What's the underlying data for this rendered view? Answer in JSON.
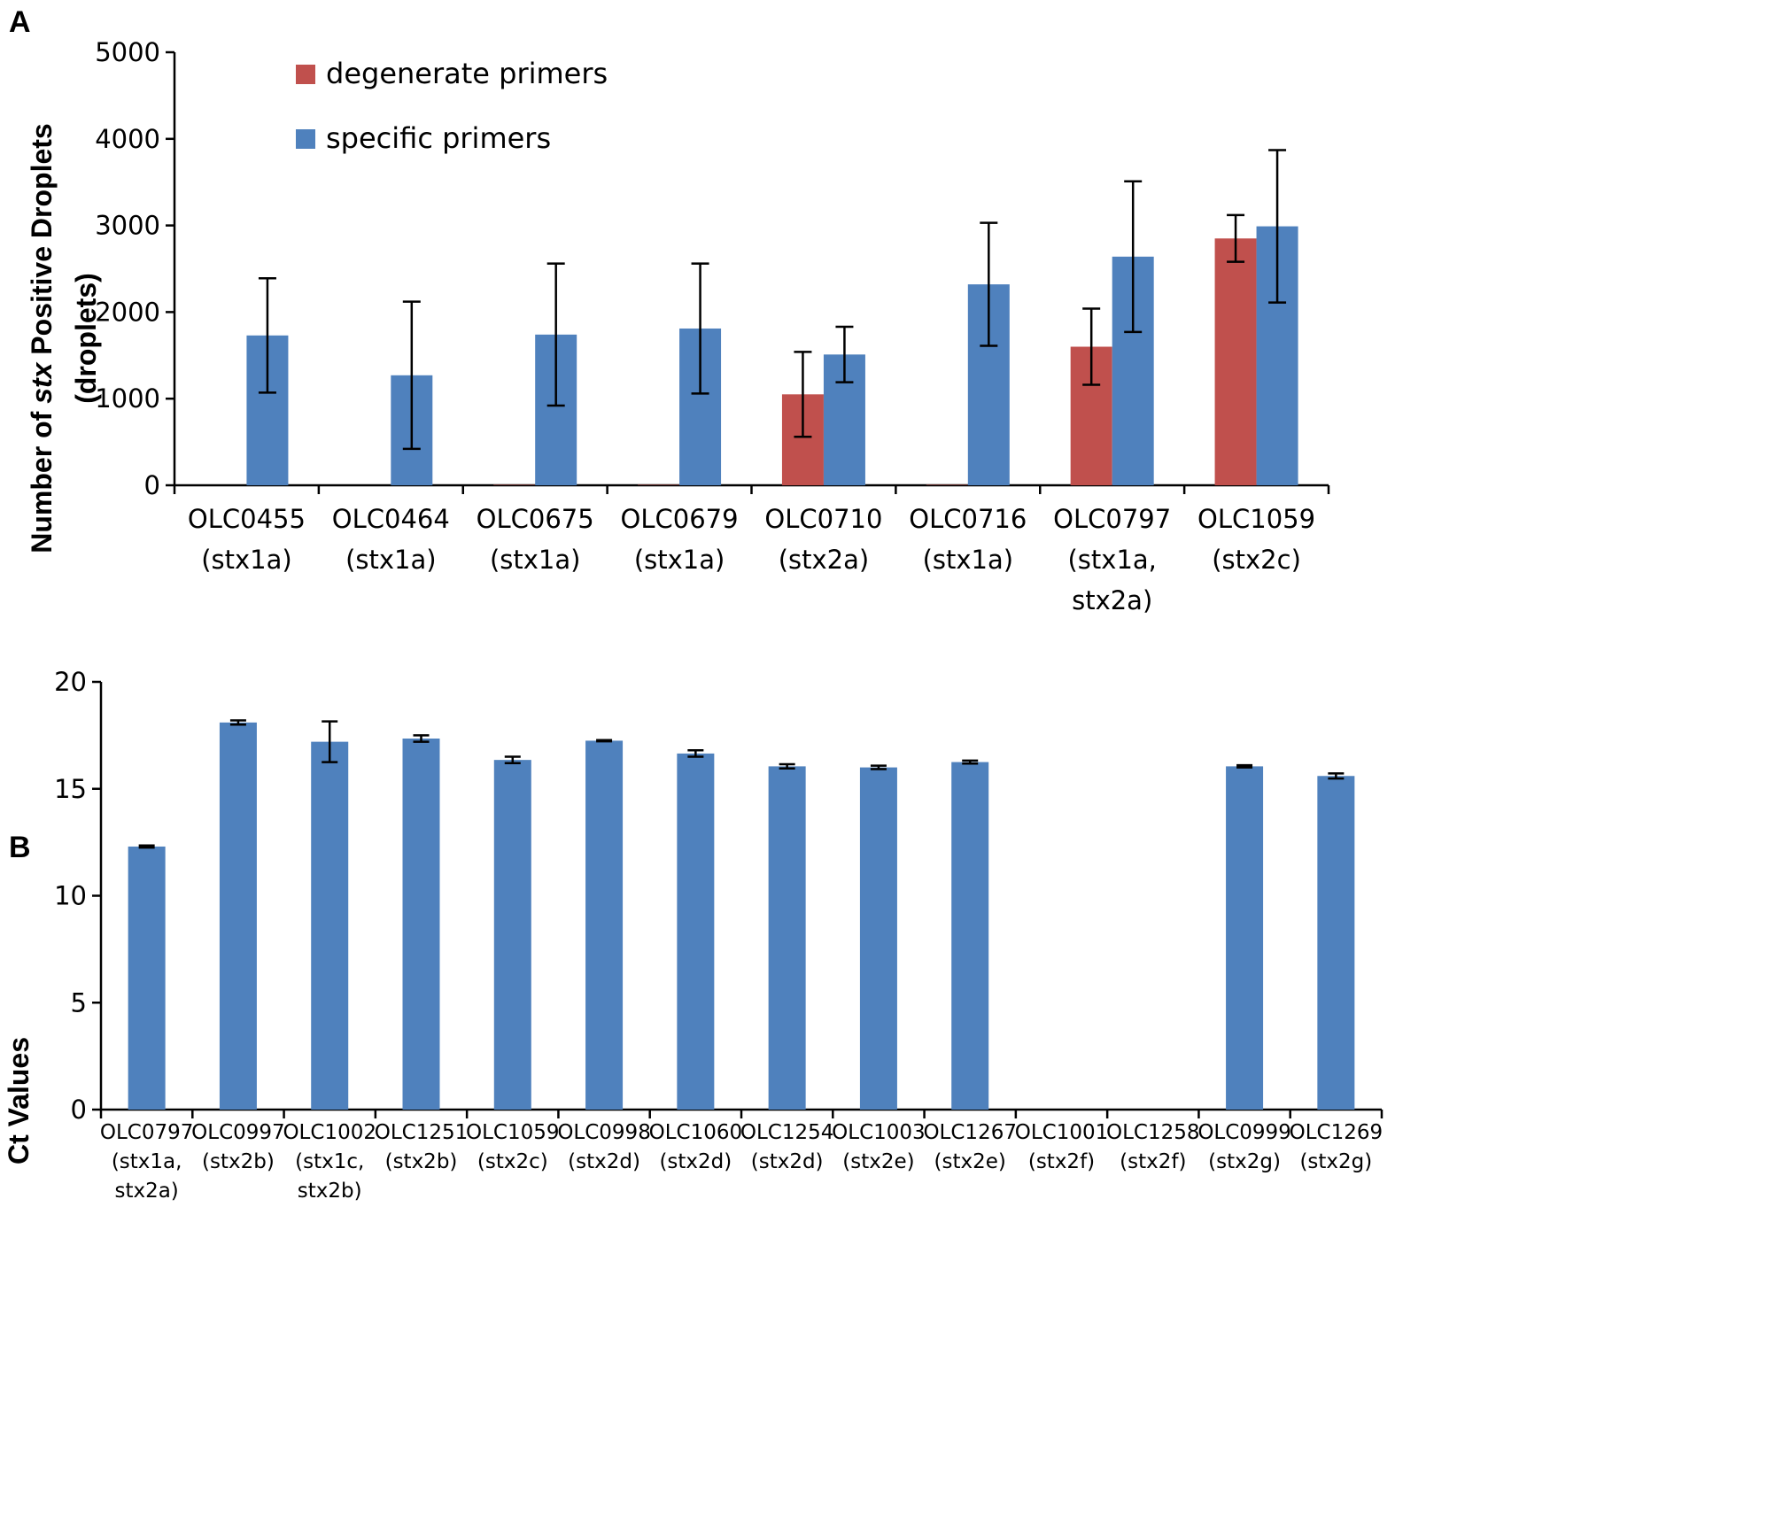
{
  "chart_data": [
    {
      "panel": "A",
      "type": "bar",
      "ylabel_prefix": "Number of ",
      "ylabel_italic": "stx",
      "ylabel_suffix": " Positive Droplets",
      "ylabel_line2": "(droplets)",
      "ylim": [
        0,
        5000
      ],
      "yticks": [
        0,
        1000,
        2000,
        3000,
        4000,
        5000
      ],
      "categories": [
        [
          "OLC0455",
          "(stx1a)"
        ],
        [
          "OLC0464",
          "(stx1a)"
        ],
        [
          "OLC0675",
          "(stx1a)"
        ],
        [
          "OLC0679",
          "(stx1a)"
        ],
        [
          "OLC0710",
          "(stx2a)"
        ],
        [
          "OLC0716",
          "(stx1a)"
        ],
        [
          "OLC0797",
          "(stx1a,",
          "stx2a)"
        ],
        [
          "OLC1059",
          "(stx2c)"
        ]
      ],
      "legend": [
        "degenerate primers",
        "specific primers"
      ],
      "series": [
        {
          "name": "degenerate primers",
          "color": "#c0504d",
          "values": [
            0,
            0,
            5,
            5,
            1050,
            5,
            1600,
            2850
          ],
          "errors": [
            0,
            0,
            0,
            0,
            490,
            0,
            440,
            270
          ]
        },
        {
          "name": "specific primers",
          "color": "#4f81bd",
          "values": [
            1730,
            1270,
            1740,
            1810,
            1510,
            2320,
            2640,
            2990
          ],
          "errors": [
            660,
            850,
            820,
            750,
            320,
            710,
            870,
            880
          ]
        }
      ]
    },
    {
      "panel": "B",
      "type": "bar",
      "ylabel": "Ct Values",
      "ylim": [
        0,
        20
      ],
      "yticks": [
        0,
        5,
        10,
        15,
        20
      ],
      "categories": [
        [
          "OLC0797",
          "(stx1a,",
          "stx2a)"
        ],
        [
          "OLC0997",
          "(stx2b)"
        ],
        [
          "OLC1002",
          "(stx1c,",
          "stx2b)"
        ],
        [
          "OLC1251",
          "(stx2b)"
        ],
        [
          "OLC1059",
          "(stx2c)"
        ],
        [
          "OLC0998",
          "(stx2d)"
        ],
        [
          "OLC1060",
          "(stx2d)"
        ],
        [
          "OLC1254",
          "(stx2d)"
        ],
        [
          "OLC1003",
          "(stx2e)"
        ],
        [
          "OLC1267",
          "(stx2e)"
        ],
        [
          "OLC1001",
          "(stx2f)"
        ],
        [
          "OLC1258",
          "(stx2f)"
        ],
        [
          "OLC0999",
          "(stx2g)"
        ],
        [
          "OLC1269",
          "(stx2g)"
        ]
      ],
      "series": [
        {
          "name": "Ct",
          "color": "#4f81bd",
          "values": [
            12.3,
            18.1,
            17.2,
            17.35,
            16.35,
            17.25,
            16.65,
            16.05,
            16.0,
            16.25,
            0,
            0,
            16.05,
            15.6
          ],
          "errors": [
            0.05,
            0.1,
            0.95,
            0.15,
            0.15,
            0.03,
            0.15,
            0.1,
            0.08,
            0.07,
            0,
            0,
            0.05,
            0.12
          ]
        }
      ]
    }
  ]
}
